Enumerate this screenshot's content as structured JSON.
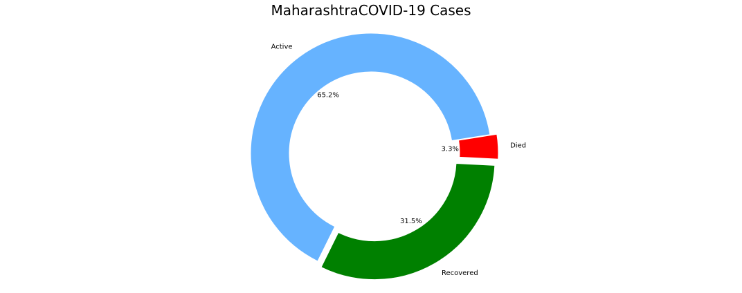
{
  "chart_data": {
    "type": "pie",
    "title": "MaharashtraCOVID-19 Cases",
    "donut": true,
    "startangle_deg": 9,
    "counterclock": false,
    "slices": [
      {
        "label": "Died",
        "percent_label": "3.3%",
        "value": 3.3,
        "color": "#ff0000",
        "exploded": true
      },
      {
        "label": "Recovered",
        "percent_label": "31.5%",
        "value": 31.5,
        "color": "#008000",
        "exploded": true
      },
      {
        "label": "Active",
        "percent_label": "65.2%",
        "value": 65.2,
        "color": "#66b3ff",
        "exploded": false
      }
    ]
  }
}
